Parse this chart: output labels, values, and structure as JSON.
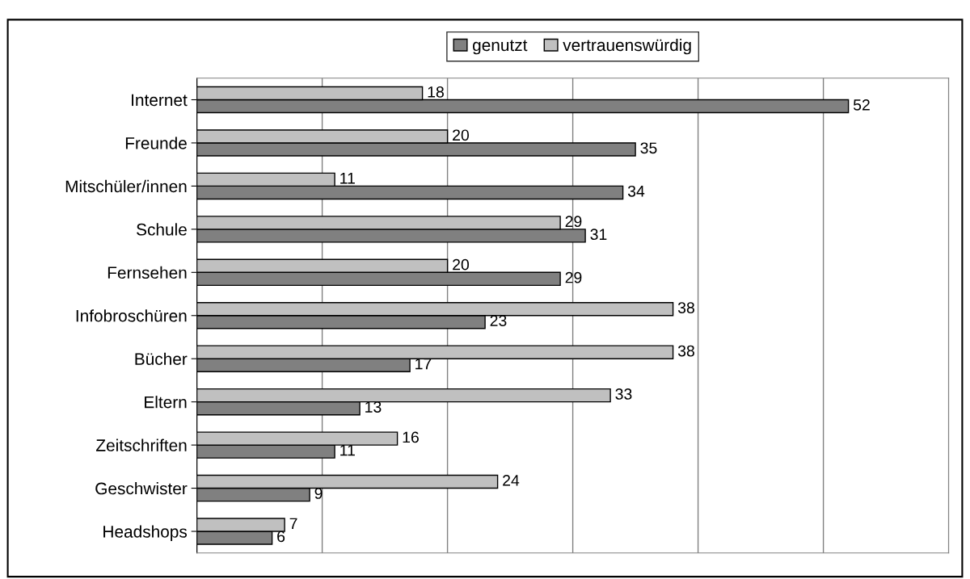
{
  "chart_data": {
    "type": "bar",
    "orientation": "horizontal",
    "categories": [
      "Internet",
      "Freunde",
      "Mitschüler/innen",
      "Schule",
      "Fernsehen",
      "Infobroschüren",
      "Bücher",
      "Eltern",
      "Zeitschriften",
      "Geschwister",
      "Headshops"
    ],
    "series": [
      {
        "name": "genutzt",
        "color": "#808080",
        "values": [
          52,
          35,
          34,
          31,
          29,
          23,
          17,
          13,
          11,
          9,
          6
        ]
      },
      {
        "name": "vertrauenswürdig",
        "color": "#c0c0c0",
        "values": [
          18,
          20,
          11,
          29,
          20,
          38,
          38,
          33,
          16,
          24,
          7
        ]
      }
    ],
    "xlim": [
      0,
      60
    ],
    "xticks": [
      {
        "value": 0,
        "label": null
      },
      {
        "value": 10,
        "label": null
      },
      {
        "value": 20,
        "label": null
      },
      {
        "value": 30,
        "label": null
      },
      {
        "value": 40,
        "label": null
      },
      {
        "value": 50,
        "label": null
      },
      {
        "value": 60,
        "label": null
      }
    ],
    "tick_labels": "y",
    "grid": "x",
    "legend": "top",
    "data_labels": true
  }
}
